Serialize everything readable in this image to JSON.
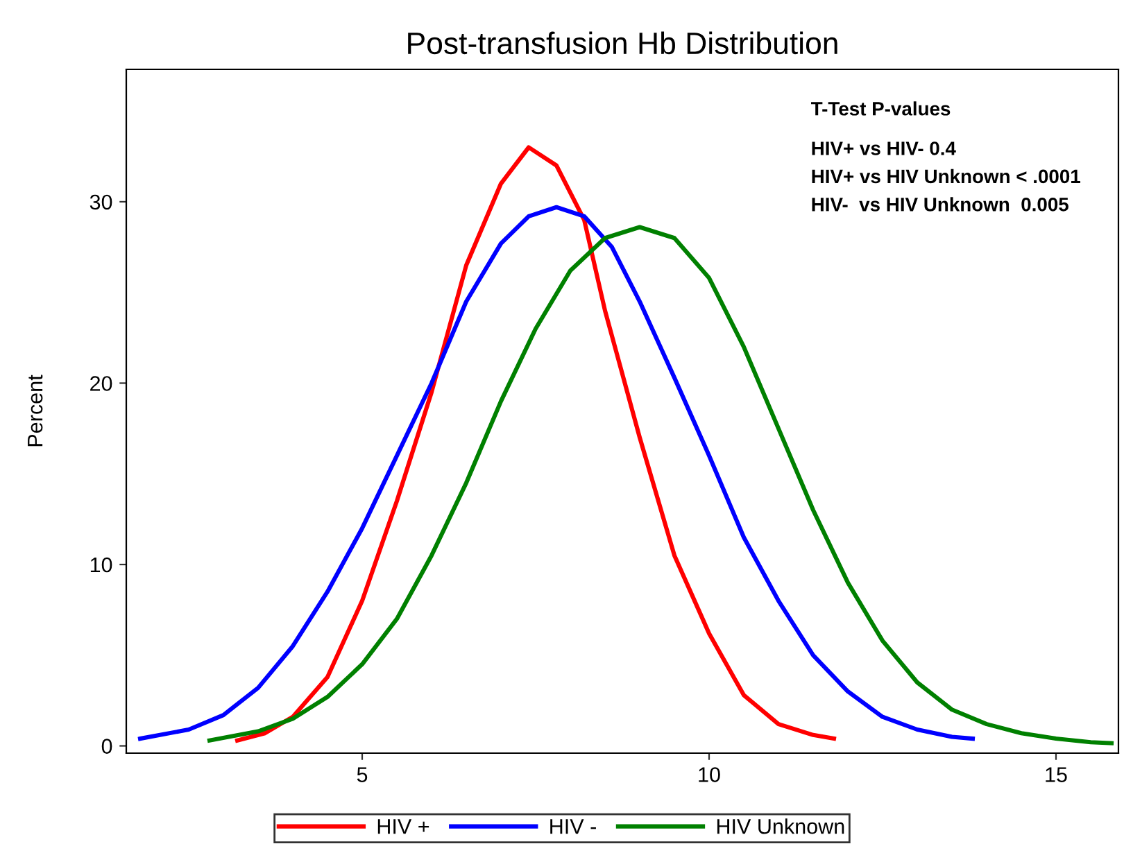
{
  "chart_data": {
    "type": "line",
    "title": "Post-transfusion Hb Distribution",
    "ylabel": "Percent",
    "annotations": [
      "T-Test P-values",
      "HIV+ vs HIV- 0.4",
      "HIV+ vs HIV Unknown < .0001",
      "HIV-  vs HIV Unknown  0.005"
    ],
    "xlim": [
      1.6,
      15.9
    ],
    "ylim": [
      -0.4,
      37.3
    ],
    "xticks": [
      5,
      10,
      15
    ],
    "yticks": [
      0,
      10,
      20,
      30
    ],
    "grid": false,
    "legend": "bottom",
    "marker": "none",
    "line_style": "solid",
    "series": [
      {
        "name": "HIV +",
        "color": "#ff0000",
        "x": [
          3.2,
          3.6,
          4,
          4.5,
          5,
          5.5,
          6,
          6.5,
          7,
          7.4,
          7.8,
          8.2,
          8.5,
          9,
          9.5,
          10,
          10.5,
          11,
          11.5,
          11.8
        ],
        "values": [
          0.3,
          0.7,
          1.6,
          3.8,
          8,
          13.5,
          19.5,
          26.5,
          31,
          33,
          32,
          29,
          24,
          17,
          10.5,
          6.2,
          2.8,
          1.2,
          0.6,
          0.4
        ]
      },
      {
        "name": "HIV -",
        "color": "#0000ff",
        "x": [
          1.8,
          2.5,
          3,
          3.5,
          4,
          4.5,
          5,
          5.5,
          6,
          6.5,
          7,
          7.4,
          7.8,
          8.2,
          8.6,
          9,
          9.5,
          10,
          10.5,
          11,
          11.5,
          12,
          12.5,
          13,
          13.5,
          13.8
        ],
        "values": [
          0.4,
          0.9,
          1.7,
          3.2,
          5.5,
          8.5,
          12,
          16,
          20,
          24.5,
          27.7,
          29.2,
          29.7,
          29.2,
          27.5,
          24.5,
          20.3,
          16,
          11.5,
          8,
          5,
          3,
          1.6,
          0.9,
          0.5,
          0.4
        ]
      },
      {
        "name": "HIV Unknown",
        "color": "#008000",
        "x": [
          2.8,
          3.5,
          4,
          4.5,
          5,
          5.5,
          6,
          6.5,
          7,
          7.5,
          8,
          8.5,
          9,
          9.5,
          10,
          10.5,
          11,
          11.5,
          12,
          12.5,
          13,
          13.5,
          14,
          14.5,
          15,
          15.5,
          15.8
        ],
        "values": [
          0.3,
          0.8,
          1.5,
          2.7,
          4.5,
          7,
          10.5,
          14.5,
          19,
          23,
          26.2,
          28,
          28.6,
          28,
          25.8,
          22,
          17.5,
          13,
          9,
          5.8,
          3.5,
          2,
          1.2,
          0.7,
          0.4,
          0.2,
          0.15
        ]
      }
    ]
  }
}
